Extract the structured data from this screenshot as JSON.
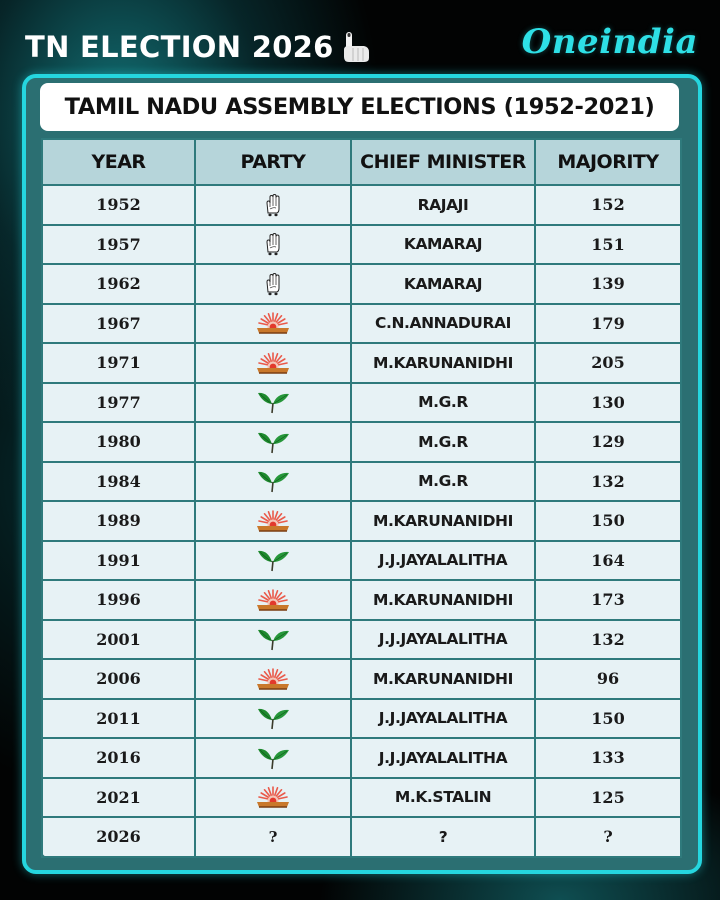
{
  "header": {
    "title": "TN ELECTION 2026",
    "title_icon": "voting-finger-icon",
    "brand": "Oneindia"
  },
  "table_title": "TAMIL NADU ASSEMBLY ELECTIONS (1952-2021)",
  "colors": {
    "accent_cyan": "#25d6df",
    "frame_teal": "#2b6f72",
    "header_bg": "#b6d5da",
    "cell_bg": "#e7f2f5",
    "leaf_green": "#1e8a2e",
    "sun_red": "#e84a3c"
  },
  "columns": [
    "YEAR",
    "PARTY",
    "CHIEF MINISTER",
    "MAJORITY"
  ],
  "party_symbols": {
    "INC": "hand-symbol-icon",
    "DMK": "rising-sun-icon",
    "AIADMK": "two-leaves-icon"
  },
  "rows": [
    {
      "year": "1952",
      "party": "INC",
      "cm": "RAJAJI",
      "majority": "152"
    },
    {
      "year": "1957",
      "party": "INC",
      "cm": "KAMARAJ",
      "majority": "151"
    },
    {
      "year": "1962",
      "party": "INC",
      "cm": "KAMARAJ",
      "majority": "139"
    },
    {
      "year": "1967",
      "party": "DMK",
      "cm": "C.N.ANNADURAI",
      "majority": "179"
    },
    {
      "year": "1971",
      "party": "DMK",
      "cm": "M.KARUNANIDHI",
      "majority": "205"
    },
    {
      "year": "1977",
      "party": "AIADMK",
      "cm": "M.G.R",
      "majority": "130"
    },
    {
      "year": "1980",
      "party": "AIADMK",
      "cm": "M.G.R",
      "majority": "129"
    },
    {
      "year": "1984",
      "party": "AIADMK",
      "cm": "M.G.R",
      "majority": "132"
    },
    {
      "year": "1989",
      "party": "DMK",
      "cm": "M.KARUNANIDHI",
      "majority": "150"
    },
    {
      "year": "1991",
      "party": "AIADMK",
      "cm": "J.J.JAYALALITHA",
      "majority": "164"
    },
    {
      "year": "1996",
      "party": "DMK",
      "cm": "M.KARUNANIDHI",
      "majority": "173"
    },
    {
      "year": "2001",
      "party": "AIADMK",
      "cm": "J.J.JAYALALITHA",
      "majority": "132"
    },
    {
      "year": "2006",
      "party": "DMK",
      "cm": "M.KARUNANIDHI",
      "majority": "96"
    },
    {
      "year": "2011",
      "party": "AIADMK",
      "cm": "J.J.JAYALALITHA",
      "majority": "150"
    },
    {
      "year": "2016",
      "party": "AIADMK",
      "cm": "J.J.JAYALALITHA",
      "majority": "133"
    },
    {
      "year": "2021",
      "party": "DMK",
      "cm": "M.K.STALIN",
      "majority": "125"
    },
    {
      "year": "2026",
      "party": "?",
      "cm": "?",
      "majority": "?"
    }
  ]
}
